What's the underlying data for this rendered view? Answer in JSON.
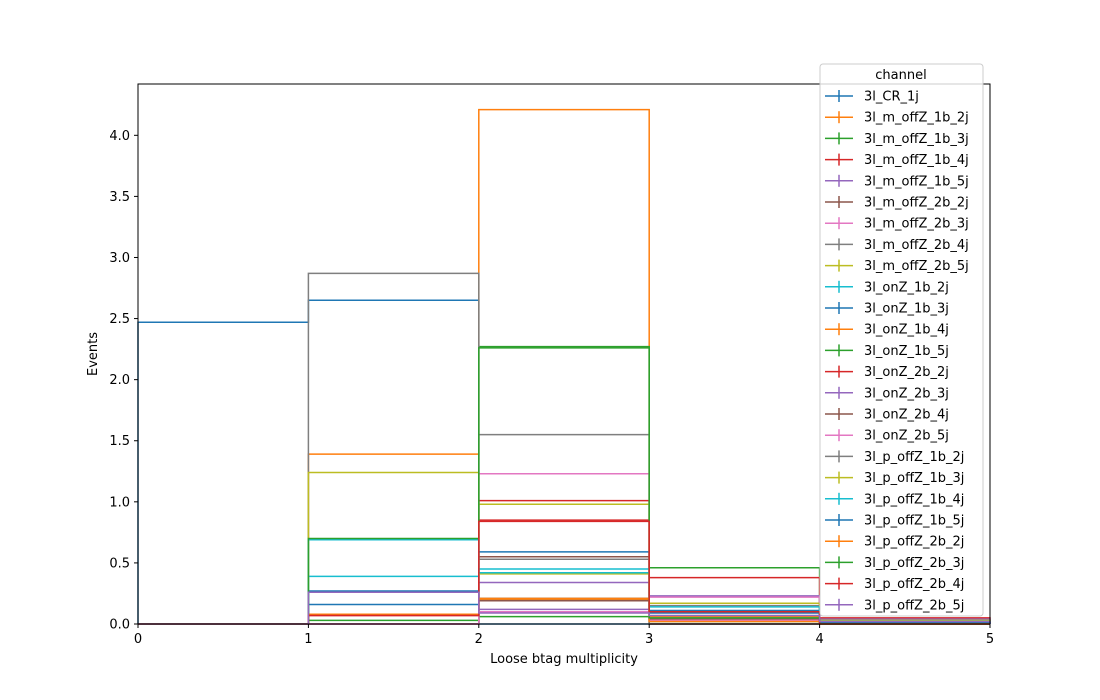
{
  "chart_data": {
    "type": "step-histogram",
    "xlabel": "Loose btag multiplicity",
    "ylabel": "Events",
    "xlim": [
      0,
      5
    ],
    "ylim": [
      0,
      4.42
    ],
    "bins": [
      0,
      1,
      2,
      3,
      4,
      5
    ],
    "xticks": [
      "0",
      "1",
      "2",
      "3",
      "4",
      "5"
    ],
    "yticks": [
      "0.0",
      "0.5",
      "1.0",
      "1.5",
      "2.0",
      "2.5",
      "3.0",
      "3.5",
      "4.0"
    ],
    "grid": false,
    "legend": {
      "title": "channel",
      "placement": "upper-right"
    },
    "series": [
      {
        "name": "3l_CR_1j",
        "color": "#1f77b4",
        "values": [
          2.47,
          2.65,
          0.0,
          0.0,
          0.0
        ]
      },
      {
        "name": "3l_m_offZ_1b_2j",
        "color": "#ff7f0e",
        "values": [
          0.0,
          1.39,
          4.21,
          0.0,
          0.0
        ]
      },
      {
        "name": "3l_m_offZ_1b_3j",
        "color": "#2ca02c",
        "values": [
          0.0,
          0.0,
          2.27,
          0.46,
          0.03
        ]
      },
      {
        "name": "3l_m_offZ_1b_4j",
        "color": "#d62728",
        "values": [
          0.0,
          0.0,
          1.01,
          0.38,
          0.05
        ]
      },
      {
        "name": "3l_m_offZ_1b_5j",
        "color": "#9467bd",
        "values": [
          0.0,
          0.0,
          0.34,
          0.23,
          0.04
        ]
      },
      {
        "name": "3l_m_offZ_2b_2j",
        "color": "#8c564b",
        "values": [
          0.0,
          0.0,
          0.55,
          0.0,
          0.0
        ]
      },
      {
        "name": "3l_m_offZ_2b_3j",
        "color": "#e377c2",
        "values": [
          0.0,
          0.0,
          1.23,
          0.22,
          0.0
        ]
      },
      {
        "name": "3l_m_offZ_2b_4j",
        "color": "#7f7f7f",
        "values": [
          0.0,
          0.0,
          1.55,
          0.15,
          0.02
        ]
      },
      {
        "name": "3l_m_offZ_2b_5j",
        "color": "#bcbd22",
        "values": [
          0.0,
          0.0,
          0.98,
          0.17,
          0.03
        ]
      },
      {
        "name": "3l_onZ_1b_2j",
        "color": "#17becf",
        "values": [
          0.0,
          0.39,
          0.45,
          0.0,
          0.0
        ]
      },
      {
        "name": "3l_onZ_1b_3j",
        "color": "#1f77b4",
        "values": [
          0.0,
          0.16,
          0.59,
          0.11,
          0.01
        ]
      },
      {
        "name": "3l_onZ_1b_4j",
        "color": "#ff7f0e",
        "values": [
          0.0,
          0.08,
          0.2,
          0.06,
          0.01
        ]
      },
      {
        "name": "3l_onZ_1b_5j",
        "color": "#2ca02c",
        "values": [
          0.0,
          0.03,
          0.06,
          0.02,
          0.0
        ]
      },
      {
        "name": "3l_onZ_2b_2j",
        "color": "#d62728",
        "values": [
          0.0,
          0.07,
          0.85,
          0.0,
          0.0
        ]
      },
      {
        "name": "3l_onZ_2b_3j",
        "color": "#9467bd",
        "values": [
          0.0,
          0.0,
          0.12,
          0.03,
          0.0
        ]
      },
      {
        "name": "3l_onZ_2b_4j",
        "color": "#8c564b",
        "values": [
          0.0,
          0.0,
          0.19,
          0.04,
          0.01
        ]
      },
      {
        "name": "3l_onZ_2b_5j",
        "color": "#e377c2",
        "values": [
          0.0,
          0.0,
          0.1,
          0.03,
          0.0
        ]
      },
      {
        "name": "3l_p_offZ_1b_2j",
        "color": "#7f7f7f",
        "values": [
          0.0,
          2.87,
          0.53,
          0.0,
          0.0
        ]
      },
      {
        "name": "3l_p_offZ_1b_3j",
        "color": "#bcbd22",
        "values": [
          0.0,
          1.24,
          0.41,
          0.1,
          0.0
        ]
      },
      {
        "name": "3l_p_offZ_1b_4j",
        "color": "#17becf",
        "values": [
          0.0,
          0.69,
          0.42,
          0.14,
          0.02
        ]
      },
      {
        "name": "3l_p_offZ_1b_5j",
        "color": "#1f77b4",
        "values": [
          0.0,
          0.27,
          0.21,
          0.09,
          0.01
        ]
      },
      {
        "name": "3l_p_offZ_2b_2j",
        "color": "#ff7f0e",
        "values": [
          0.0,
          0.08,
          0.21,
          0.02,
          0.0
        ]
      },
      {
        "name": "3l_p_offZ_2b_3j",
        "color": "#2ca02c",
        "values": [
          0.0,
          0.7,
          2.26,
          0.05,
          0.0
        ]
      },
      {
        "name": "3l_p_offZ_2b_4j",
        "color": "#d62728",
        "values": [
          0.0,
          0.07,
          0.84,
          0.1,
          0.0
        ]
      },
      {
        "name": "3l_p_offZ_2b_5j",
        "color": "#9467bd",
        "values": [
          0.0,
          0.26,
          0.09,
          0.07,
          0.02
        ]
      }
    ]
  }
}
